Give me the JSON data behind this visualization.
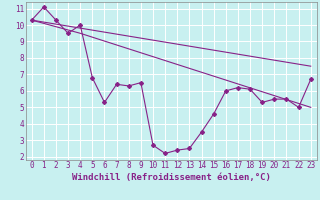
{
  "xlabel": "Windchill (Refroidissement éolien,°C)",
  "bg_color": "#c8f0f0",
  "line_color": "#882288",
  "grid_color": "#ffffff",
  "xlim_min": -0.5,
  "xlim_max": 23.5,
  "ylim_min": 1.8,
  "ylim_max": 11.4,
  "xticks": [
    0,
    1,
    2,
    3,
    4,
    5,
    6,
    7,
    8,
    9,
    10,
    11,
    12,
    13,
    14,
    15,
    16,
    17,
    18,
    19,
    20,
    21,
    22,
    23
  ],
  "yticks": [
    2,
    3,
    4,
    5,
    6,
    7,
    8,
    9,
    10,
    11
  ],
  "line1_x": [
    0,
    1,
    2,
    3,
    4,
    5,
    6,
    7,
    8,
    9,
    10,
    11,
    12,
    13,
    14,
    15,
    16,
    17,
    18,
    19,
    20,
    21,
    22,
    23
  ],
  "line1_y": [
    10.3,
    11.1,
    10.3,
    9.5,
    10.0,
    6.8,
    5.3,
    6.4,
    6.3,
    6.5,
    2.7,
    2.2,
    2.4,
    2.5,
    3.5,
    4.6,
    6.0,
    6.2,
    6.1,
    5.3,
    5.5,
    5.5,
    5.0,
    6.7
  ],
  "line2_x": [
    0,
    23
  ],
  "line2_y": [
    10.3,
    7.5
  ],
  "line3_x": [
    0,
    4,
    23
  ],
  "line3_y": [
    10.3,
    9.5,
    5.0
  ],
  "tick_fontsize": 5.5,
  "label_fontsize": 6.5,
  "spine_color": "#888888"
}
